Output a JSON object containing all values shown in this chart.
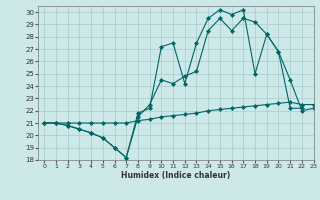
{
  "xlabel": "Humidex (Indice chaleur)",
  "bg_color": "#cce8e8",
  "grid_color": "#aacccc",
  "line_color": "#006666",
  "xlim": [
    -0.5,
    23
  ],
  "ylim": [
    18,
    30.5
  ],
  "xticks": [
    0,
    1,
    2,
    3,
    4,
    5,
    6,
    7,
    8,
    9,
    10,
    11,
    12,
    13,
    14,
    15,
    16,
    17,
    18,
    19,
    20,
    21,
    22,
    23
  ],
  "yticks": [
    18,
    19,
    20,
    21,
    22,
    23,
    24,
    25,
    26,
    27,
    28,
    29,
    30
  ],
  "series": {
    "line1_wavy": {
      "x": [
        0,
        1,
        2,
        3,
        4,
        5,
        6,
        7,
        8,
        9,
        10,
        11,
        12,
        13,
        14,
        15,
        16,
        17,
        18,
        19,
        20,
        21,
        22
      ],
      "y": [
        21.0,
        21.0,
        20.8,
        20.5,
        20.2,
        19.8,
        19.0,
        18.2,
        21.8,
        22.2,
        27.2,
        27.5,
        24.2,
        27.5,
        29.5,
        30.2,
        29.8,
        30.2,
        25.0,
        28.2,
        26.8,
        22.2,
        22.2
      ]
    },
    "line2_smooth": {
      "x": [
        0,
        1,
        2,
        3,
        4,
        5,
        6,
        7,
        8,
        9,
        10,
        11,
        12,
        13,
        14,
        15,
        16,
        17,
        18,
        19,
        20,
        21,
        22,
        23
      ],
      "y": [
        21.0,
        21.0,
        20.8,
        20.5,
        20.2,
        19.8,
        19.0,
        18.2,
        21.5,
        22.5,
        24.5,
        24.2,
        24.8,
        25.2,
        28.5,
        29.5,
        28.5,
        29.5,
        29.2,
        28.2,
        26.8,
        24.5,
        22.0,
        22.2
      ]
    },
    "line3_flat": {
      "x": [
        0,
        1,
        2,
        3,
        4,
        5,
        6,
        7,
        8,
        9,
        10,
        11,
        12,
        13,
        14,
        15,
        16,
        17,
        18,
        19,
        20,
        21,
        22,
        23
      ],
      "y": [
        21.0,
        21.0,
        21.0,
        21.0,
        21.0,
        21.0,
        21.0,
        21.0,
        21.2,
        21.3,
        21.5,
        21.6,
        21.7,
        21.8,
        22.0,
        22.1,
        22.2,
        22.3,
        22.4,
        22.5,
        22.6,
        22.7,
        22.5,
        22.5
      ]
    }
  }
}
